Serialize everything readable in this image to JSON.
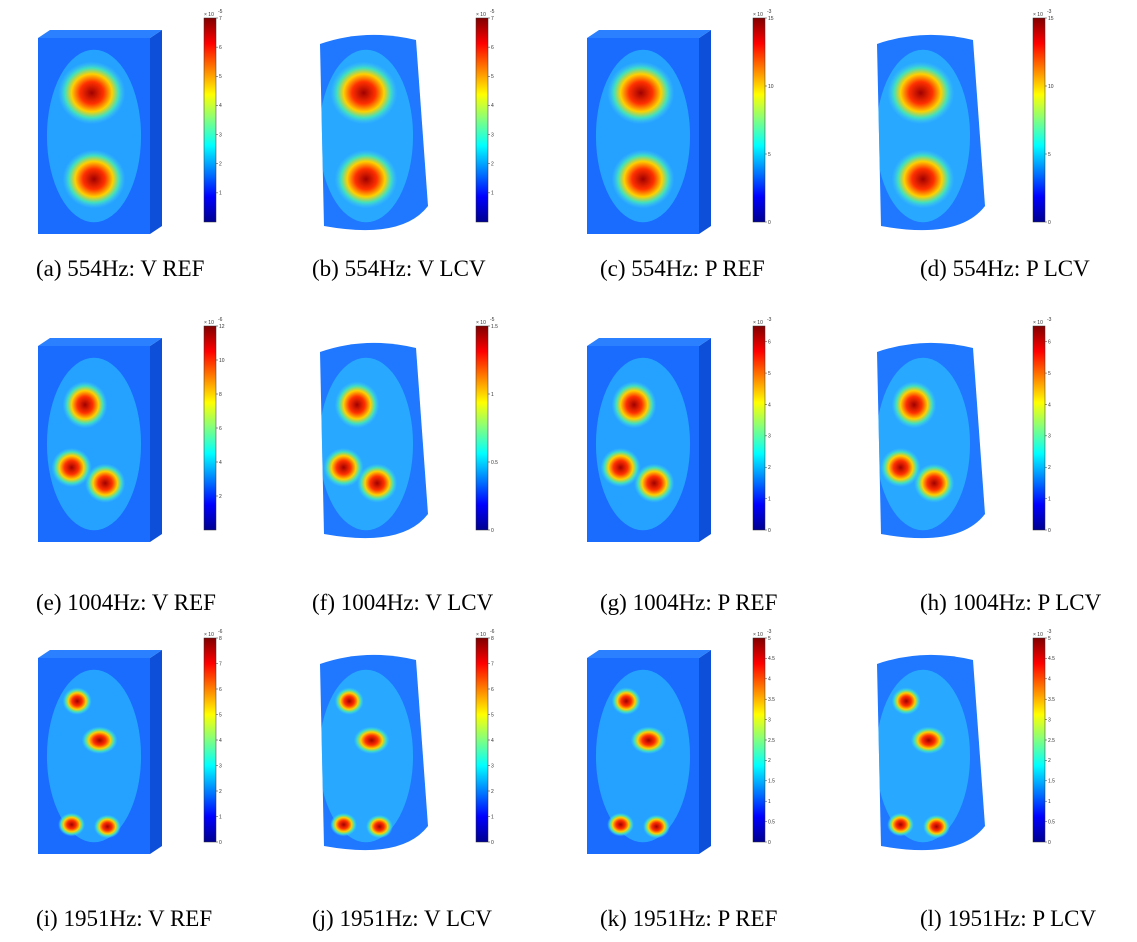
{
  "figure": {
    "panels": [
      {
        "id": "a",
        "caption": "(a) 554Hz: V REF",
        "kind": "box",
        "scale_label": "× 10",
        "scale_exp": "-5",
        "ticks": [
          "1",
          "2",
          "3",
          "4",
          "5",
          "6",
          "7"
        ],
        "max": 7
      },
      {
        "id": "b",
        "caption": "(b) 554Hz: V LCV",
        "kind": "blob",
        "scale_label": "× 10",
        "scale_exp": "-5",
        "ticks": [
          "1",
          "2",
          "3",
          "4",
          "5",
          "6",
          "7"
        ],
        "max": 7
      },
      {
        "id": "c",
        "caption": "(c) 554Hz: P REF",
        "kind": "box",
        "scale_label": "× 10",
        "scale_exp": "-3",
        "ticks": [
          "0",
          "5",
          "10",
          "15"
        ],
        "max": 15
      },
      {
        "id": "d",
        "caption": "(d) 554Hz: P LCV",
        "kind": "blob",
        "scale_label": "× 10",
        "scale_exp": "-3",
        "ticks": [
          "0",
          "5",
          "10",
          "15"
        ],
        "max": 15
      },
      {
        "id": "e",
        "caption": "(e) 1004Hz: V REF",
        "kind": "box",
        "scale_label": "× 10",
        "scale_exp": "-6",
        "ticks": [
          "2",
          "4",
          "6",
          "8",
          "10",
          "12"
        ],
        "max": 12
      },
      {
        "id": "f",
        "caption": "(f) 1004Hz: V LCV",
        "kind": "blob",
        "scale_label": "× 10",
        "scale_exp": "-5",
        "ticks": [
          "0",
          "0.5",
          "1",
          "1.5"
        ],
        "max": 1.5
      },
      {
        "id": "g",
        "caption": "(g) 1004Hz: P REF",
        "kind": "box",
        "scale_label": "× 10",
        "scale_exp": "-3",
        "ticks": [
          "0",
          "1",
          "2",
          "3",
          "4",
          "5",
          "6"
        ],
        "max": 6.5
      },
      {
        "id": "h",
        "caption": "(h) 1004Hz: P LCV",
        "kind": "blob",
        "scale_label": "× 10",
        "scale_exp": "-3",
        "ticks": [
          "0",
          "1",
          "2",
          "3",
          "4",
          "5",
          "6"
        ],
        "max": 6.5
      },
      {
        "id": "i",
        "caption": "(i) 1951Hz: V REF",
        "kind": "box",
        "scale_label": "× 10",
        "scale_exp": "-6",
        "ticks": [
          "0",
          "1",
          "2",
          "3",
          "4",
          "5",
          "6",
          "7",
          "8"
        ],
        "max": 8
      },
      {
        "id": "j",
        "caption": "(j) 1951Hz: V LCV",
        "kind": "blob",
        "scale_label": "× 10",
        "scale_exp": "-6",
        "ticks": [
          "0",
          "1",
          "2",
          "3",
          "4",
          "5",
          "6",
          "7",
          "8"
        ],
        "max": 8
      },
      {
        "id": "k",
        "caption": "(k) 1951Hz: P REF",
        "kind": "box",
        "scale_label": "× 10",
        "scale_exp": "-3",
        "ticks": [
          "0",
          "0.5",
          "1",
          "1.5",
          "2",
          "2.5",
          "3",
          "3.5",
          "4",
          "4.5",
          "5"
        ],
        "max": 5
      },
      {
        "id": "l",
        "caption": "(l) 1951Hz: P LCV",
        "kind": "blob",
        "scale_label": "× 10",
        "scale_exp": "-3",
        "ticks": [
          "0",
          "0.5",
          "1",
          "1.5",
          "2",
          "2.5",
          "3",
          "3.5",
          "4",
          "4.5",
          "5"
        ],
        "max": 5
      }
    ],
    "colormap": [
      "#00008f",
      "#0000ff",
      "#0080ff",
      "#00ffff",
      "#80ff80",
      "#ffff00",
      "#ff8000",
      "#ff0000",
      "#800000"
    ]
  }
}
